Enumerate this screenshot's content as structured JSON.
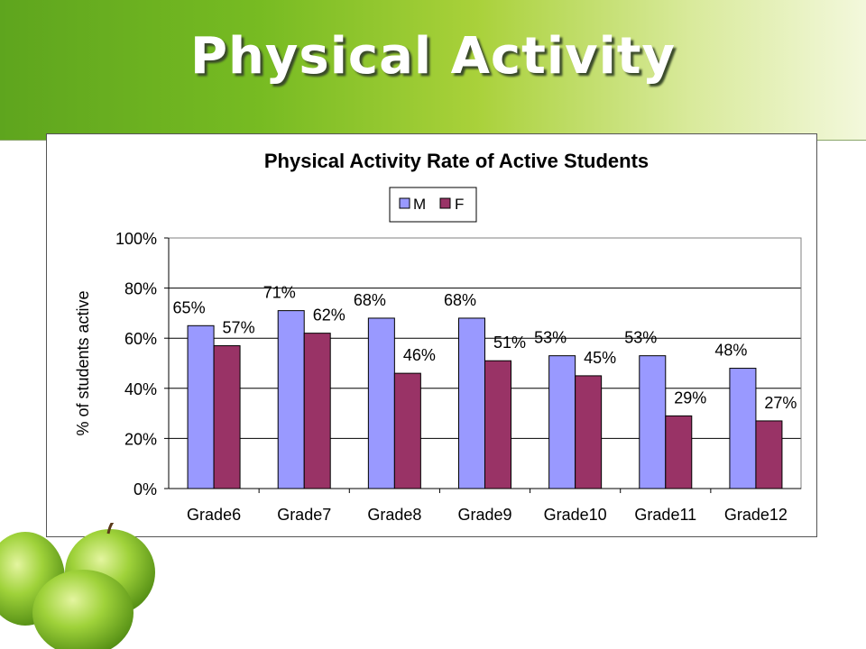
{
  "slide": {
    "title": "Physical Activity"
  },
  "colors": {
    "M": "#9999ff",
    "F": "#993366",
    "header_start": "#5ea51e",
    "header_end": "#f3f8dc"
  },
  "decoration": {
    "apples": "green-apples-image"
  },
  "chart_data": {
    "type": "bar",
    "title": "Physical Activity Rate of Active Students",
    "xlabel": "",
    "ylabel": "% of students active",
    "ylim": [
      0,
      100
    ],
    "yticks": [
      "0%",
      "20%",
      "40%",
      "60%",
      "80%",
      "100%"
    ],
    "ytick_values": [
      0,
      20,
      40,
      60,
      80,
      100
    ],
    "grid": true,
    "legend": "top-center",
    "categories": [
      "Grade6",
      "Grade7",
      "Grade8",
      "Grade9",
      "Grade10",
      "Grade11",
      "Grade12"
    ],
    "series": [
      {
        "name": "M",
        "values": [
          65,
          71,
          68,
          68,
          53,
          53,
          48
        ],
        "labels": [
          "65%",
          "71%",
          "68%",
          "68%",
          "53%",
          "53%",
          "48%"
        ]
      },
      {
        "name": "F",
        "values": [
          57,
          62,
          46,
          51,
          45,
          29,
          27
        ],
        "labels": [
          "57%",
          "62%",
          "46%",
          "51%",
          "45%",
          "29%",
          "27%"
        ]
      }
    ]
  }
}
